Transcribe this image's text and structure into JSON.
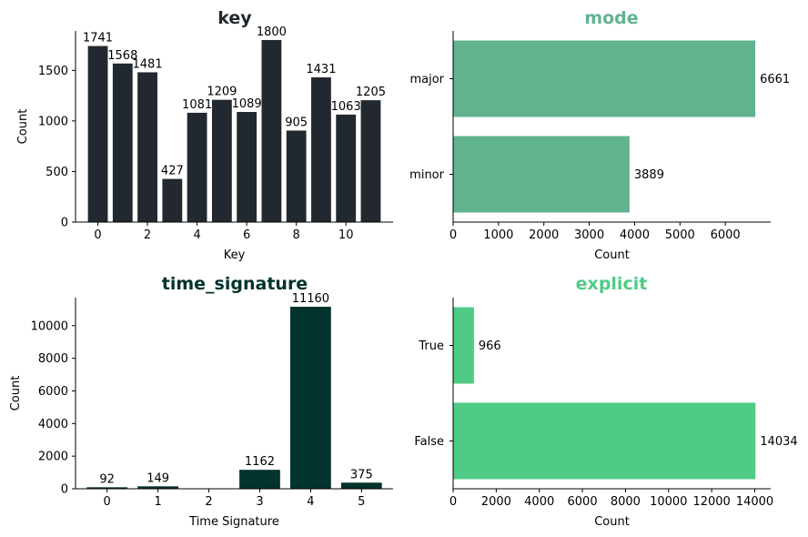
{
  "chart_data": [
    {
      "id": "key",
      "type": "bar",
      "orientation": "vertical",
      "title": "key",
      "title_color": "#212830",
      "bar_color": "#212830",
      "xlabel": "Key",
      "ylabel": "Count",
      "x": [
        0,
        1,
        2,
        3,
        4,
        5,
        6,
        7,
        8,
        9,
        10,
        11
      ],
      "values": [
        1741,
        1568,
        1481,
        427,
        1081,
        1209,
        1089,
        1800,
        905,
        1431,
        1063,
        1205
      ],
      "x_ticks": [
        0,
        2,
        4,
        6,
        8,
        10
      ],
      "y_ticks": [
        0,
        500,
        1000,
        1500
      ],
      "xlim": [
        -0.9,
        11.9
      ],
      "ylim": [
        0,
        1890
      ],
      "grid": false
    },
    {
      "id": "mode",
      "type": "bar",
      "orientation": "horizontal",
      "title": "mode",
      "title_color": "#61b38f",
      "bar_color": "#61b38f",
      "xlabel": "Count",
      "ylabel": "",
      "categories": [
        "major",
        "minor"
      ],
      "values": [
        6661,
        3889
      ],
      "x_ticks": [
        0,
        1000,
        2000,
        3000,
        4000,
        5000,
        6000
      ],
      "xlim": [
        0,
        7000
      ],
      "grid": false
    },
    {
      "id": "time_signature",
      "type": "bar",
      "orientation": "vertical",
      "title": "time_signature",
      "title_color": "#02332c",
      "bar_color": "#02332c",
      "xlabel": "Time Signature",
      "ylabel": "Count",
      "x": [
        0,
        1,
        3,
        4,
        5
      ],
      "values": [
        92,
        149,
        1162,
        11160,
        375
      ],
      "x_ticks": [
        0,
        1,
        2,
        3,
        4,
        5
      ],
      "y_ticks": [
        0,
        2000,
        4000,
        6000,
        8000,
        10000
      ],
      "xlim": [
        -0.62,
        5.62
      ],
      "ylim": [
        0,
        11720
      ],
      "grid": false
    },
    {
      "id": "explicit",
      "type": "bar",
      "orientation": "horizontal",
      "title": "explicit",
      "title_color": "#4fcb85",
      "bar_color": "#4fcb85",
      "xlabel": "Count",
      "ylabel": "",
      "categories": [
        "True",
        "False"
      ],
      "values": [
        966,
        14034
      ],
      "x_ticks": [
        0,
        2000,
        4000,
        6000,
        8000,
        10000,
        12000,
        14000
      ],
      "xlim": [
        0,
        14740
      ],
      "grid": false
    }
  ]
}
